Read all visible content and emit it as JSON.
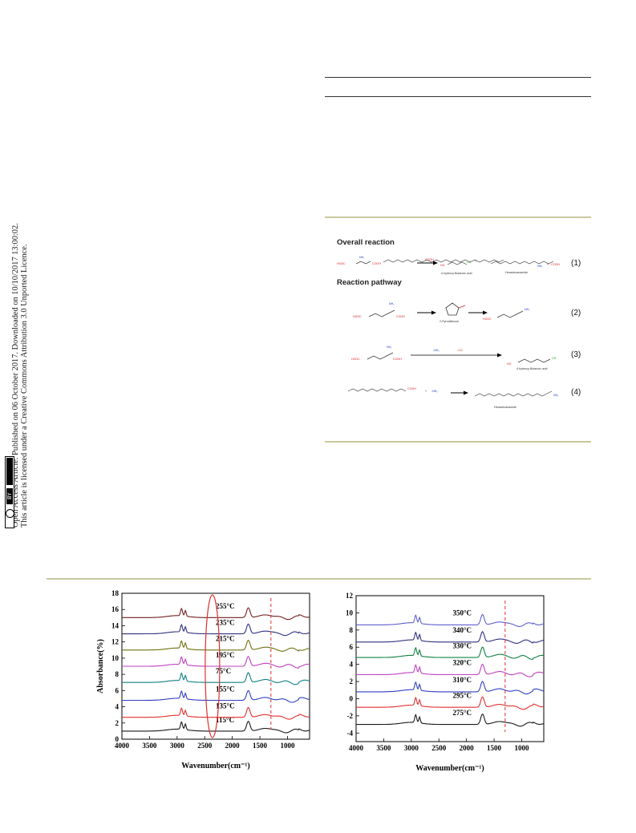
{
  "sidebar": {
    "line1": "Open Access Article. Published on 06 October 2017. Downloaded on 10/10/2017 13:00:02.",
    "line2": "This article is licensed under a Creative Commons Attribution 3.0 Unported Licence.",
    "cc_label": "BY"
  },
  "scheme": {
    "overall_heading": "Overall reaction",
    "pathway_heading": "Reaction pathway",
    "eq1": "(1)",
    "eq2": "(2)",
    "eq3": "(3)",
    "eq4": "(4)",
    "hooc": "HOOC",
    "cooh": "COOH",
    "nh2": "NH₂",
    "oh": "OH",
    "ho": "HO",
    "minus_nh3": "-NH₃",
    "minus_co": "-CO",
    "minus_cooh": "-COOH",
    "plus": "+",
    "name_hba": "4-hydroxy-Butanoic acid",
    "name_hex": "Hexadecanamide",
    "name_pyr": "2-Pyrrolidinone",
    "name_hba3": "4-hydroxy-Butanoic acid",
    "name_hex4": "Hexadecanamide"
  },
  "chart_data": [
    {
      "type": "line",
      "xlabel": "Wavenumber(cm⁻¹)",
      "ylabel": "Absorbance(%)",
      "xlim": [
        4000,
        600
      ],
      "ylim": [
        0,
        18
      ],
      "xticks": [
        4000,
        3500,
        3000,
        2500,
        2000,
        1500,
        1000
      ],
      "yticks": [
        0,
        2,
        4,
        6,
        8,
        10,
        12,
        14,
        16,
        18
      ],
      "dashed_line_x": 1300,
      "highlight": "ellipse around 2360 cm⁻¹",
      "series": [
        {
          "name": "115°C",
          "offset": 1.0,
          "color": "#1a1a1a"
        },
        {
          "name": "135°C",
          "offset": 2.7,
          "color": "#e03030"
        },
        {
          "name": "155°C",
          "offset": 4.8,
          "color": "#3040c0"
        },
        {
          "name": "75°C",
          "offset": 7.0,
          "color": "#108080"
        },
        {
          "name": "195°C",
          "offset": 9.0,
          "color": "#c040c0"
        },
        {
          "name": "215°C",
          "offset": 11.0,
          "color": "#707010"
        },
        {
          "name": "235°C",
          "offset": 13.0,
          "color": "#303080"
        },
        {
          "name": "255°C",
          "offset": 15.0,
          "color": "#702020"
        }
      ]
    },
    {
      "type": "line",
      "xlabel": "Wavenumber(cm⁻¹)",
      "ylabel": "",
      "xlim": [
        4000,
        600
      ],
      "ylim": [
        -5,
        12
      ],
      "xticks": [
        4000,
        3500,
        3000,
        2500,
        2000,
        1500,
        1000
      ],
      "yticks": [
        -4,
        -2,
        0,
        2,
        4,
        6,
        8,
        10,
        12
      ],
      "dashed_line_x": 1300,
      "series": [
        {
          "name": "275°C",
          "offset": -3.0,
          "color": "#1a1a1a"
        },
        {
          "name": "295°C",
          "offset": -1.0,
          "color": "#e03030"
        },
        {
          "name": "310°C",
          "offset": 0.8,
          "color": "#3040c0"
        },
        {
          "name": "320°C",
          "offset": 2.8,
          "color": "#c040c0"
        },
        {
          "name": "330°C",
          "offset": 4.8,
          "color": "#108040"
        },
        {
          "name": "340°C",
          "offset": 6.6,
          "color": "#303080"
        },
        {
          "name": "350°C",
          "offset": 8.6,
          "color": "#6060d0"
        }
      ]
    }
  ]
}
